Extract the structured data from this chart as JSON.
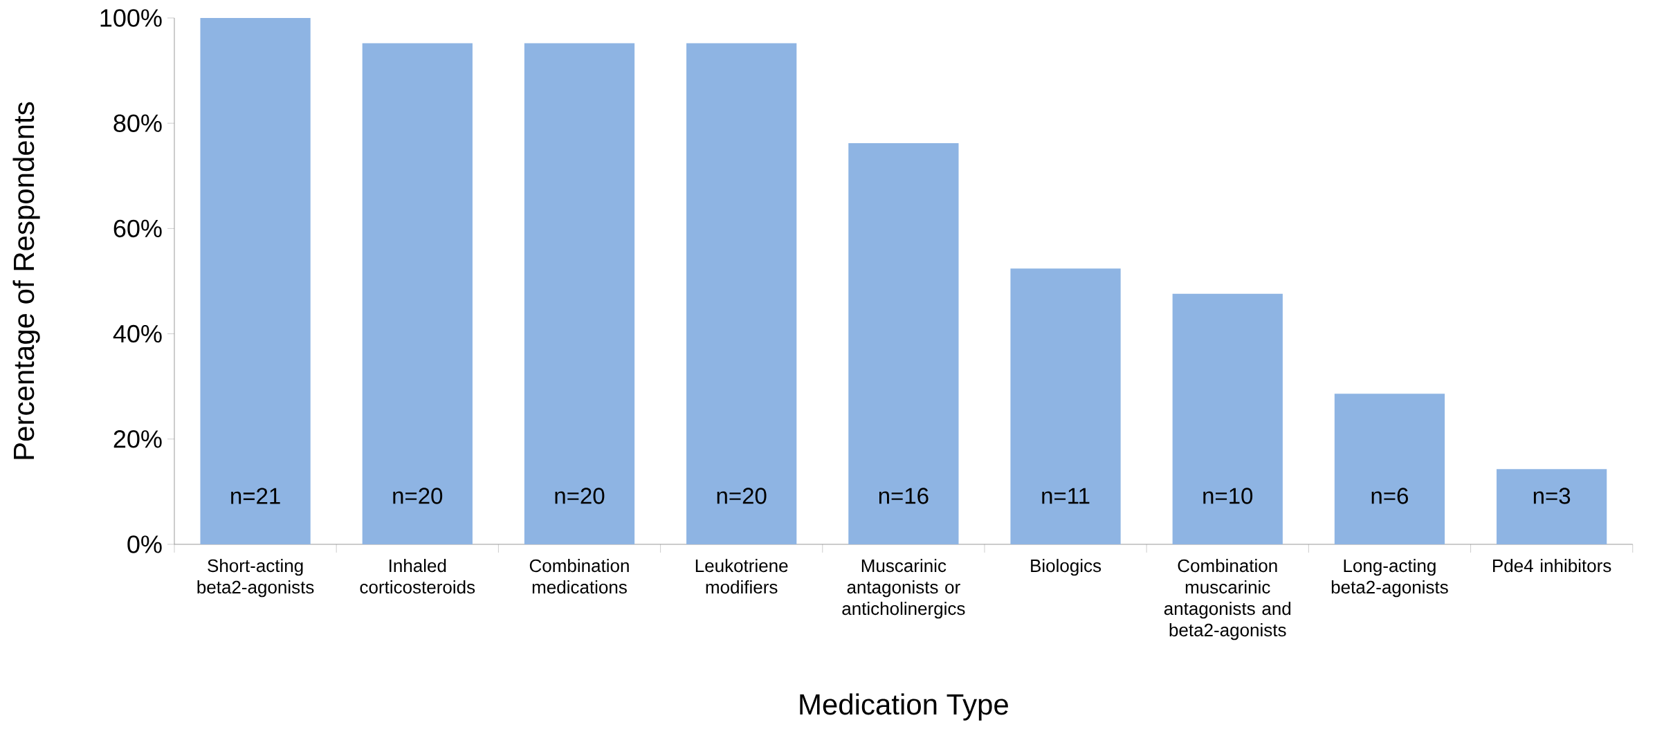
{
  "chart_data": {
    "type": "bar",
    "xlabel": "Medication Type",
    "ylabel": "Percentage of Respondents",
    "categories": [
      "Short-acting beta2-agonists",
      "Inhaled corticosteroids",
      "Combination medications",
      "Leukotriene modifiers",
      "Muscarinic antagonists or anticholinergics",
      "Biologics",
      "Combination muscarinic antagonists and beta2-agonists",
      "Long-acting beta2-agonists",
      "Pde4 inhibitors"
    ],
    "values": [
      100,
      95.2,
      95.2,
      95.2,
      76.2,
      52.4,
      47.6,
      28.6,
      14.3
    ],
    "annotations": [
      "n=21",
      "n=20",
      "n=20",
      "n=20",
      "n=16",
      "n=11",
      "n=10",
      "n=6",
      "n=3"
    ],
    "color": "#8eb4e3",
    "ylim": [
      0,
      100
    ],
    "yticks": [
      {
        "value": 0,
        "label": "0%"
      },
      {
        "value": 20,
        "label": "20%"
      },
      {
        "value": 40,
        "label": "40%"
      },
      {
        "value": 60,
        "label": "60%"
      },
      {
        "value": 80,
        "label": "80%"
      },
      {
        "value": 100,
        "label": "100%"
      }
    ]
  }
}
